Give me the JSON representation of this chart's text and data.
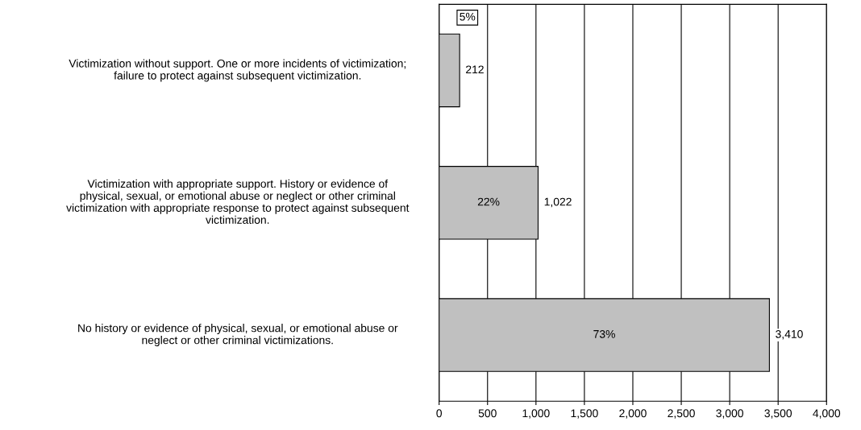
{
  "chart_data": {
    "type": "bar",
    "orientation": "horizontal",
    "categories": [
      "Victimization without support. One or more incidents of victimization; failure to protect against subsequent victimization.",
      "Victimization with appropriate support. History or evidence of physical, sexual, or emotional abuse or neglect or other criminal victimization with appropriate response to protect against subsequent victimization.",
      "No history or evidence of physical, sexual, or emotional abuse or neglect or other criminal victimizations."
    ],
    "values": [
      212,
      1022,
      3410
    ],
    "value_labels": [
      "212",
      "1,022",
      "3,410"
    ],
    "color": "#c0c0c0",
    "xlim": [
      0,
      4000
    ],
    "xticks": [
      {
        "value": 0,
        "label": "0"
      },
      {
        "value": 500,
        "label": "500"
      },
      {
        "value": 1000,
        "label": "1,000"
      },
      {
        "value": 1500,
        "label": "1,500"
      },
      {
        "value": 2000,
        "label": "2,000"
      },
      {
        "value": 2500,
        "label": "2,500"
      },
      {
        "value": 3000,
        "label": "3,000"
      },
      {
        "value": 3500,
        "label": "3,500"
      },
      {
        "value": 4000,
        "label": "4,000"
      }
    ],
    "grid": "x",
    "annotations": [
      "5%",
      "22%",
      "73%"
    ]
  }
}
